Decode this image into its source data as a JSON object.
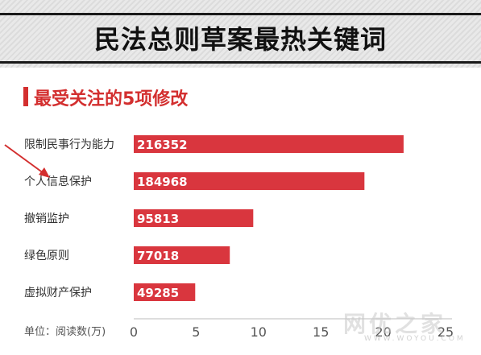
{
  "header": {
    "title": "民法总则草案最热关键词"
  },
  "section": {
    "subtitle": "最受关注的5项修改"
  },
  "chart_data": {
    "type": "bar",
    "orientation": "horizontal",
    "categories": [
      "限制民事行为能力",
      "个人信息保护",
      "撤销监护",
      "绿色原则",
      "虚拟财产保护"
    ],
    "values": [
      216352,
      184968,
      95813,
      77018,
      49285
    ],
    "value_labels": [
      "216352",
      "184968",
      "95813",
      "77018",
      "49285"
    ],
    "axis_unit_label": "单位：阅读数(万)",
    "x_ticks": [
      "0",
      "5",
      "10",
      "15",
      "20",
      "25"
    ],
    "xlim": [
      0,
      25
    ],
    "scale_note": "bar length in 万 (values / 10000)",
    "grid": false,
    "bar_color": "#d9363e"
  },
  "watermark": {
    "text": "网优之家",
    "sub": "WWW.WOYOU.COM"
  }
}
